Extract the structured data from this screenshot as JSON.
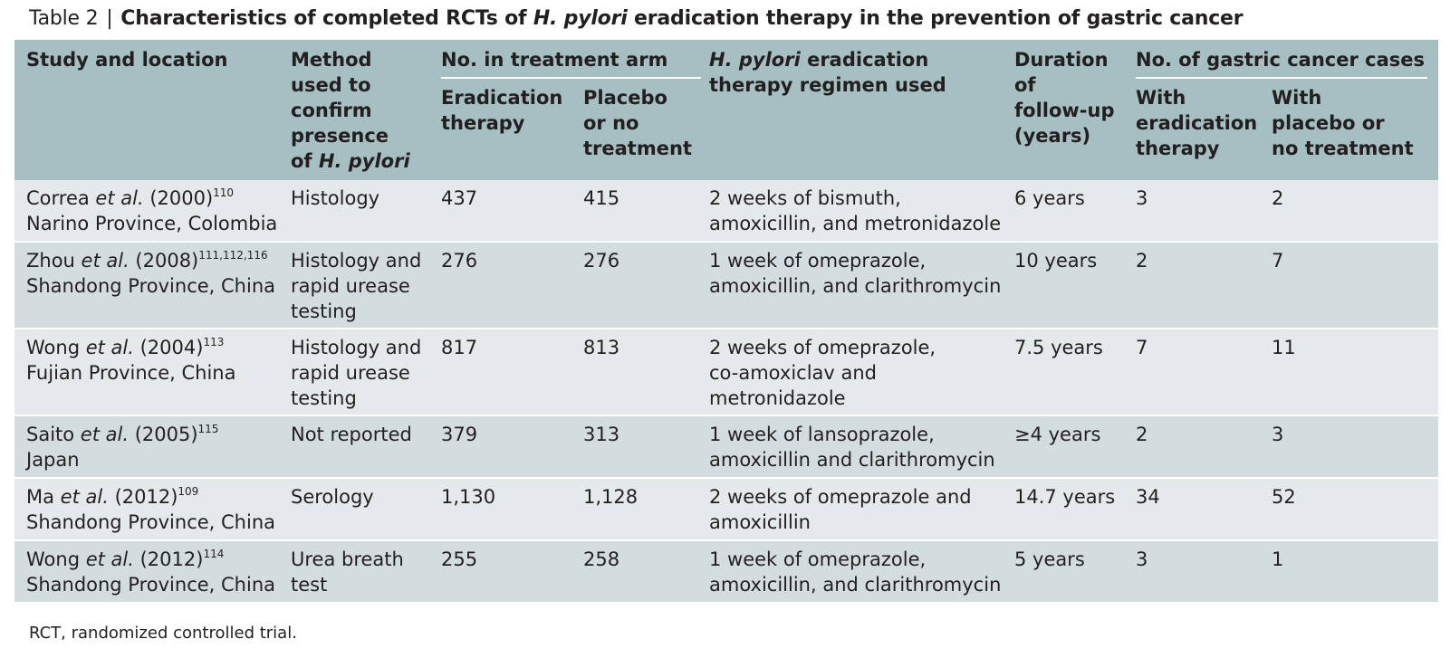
{
  "caption": {
    "label": "Table 2",
    "separator": "|",
    "title_before": "Characteristics of completed RCTs of ",
    "title_italic": "H. pylori",
    "title_after": " eradication therapy in the prevention of gastric cancer"
  },
  "headers": {
    "study": "Study and location",
    "method_a": "Method\nused to\nconfirm\npresence\nof ",
    "method_italic": "H. pylori",
    "treatment_group": "No. in treatment arm",
    "eradication": "Eradication\ntherapy",
    "placebo": "Placebo\nor no\ntreatment",
    "regimen_italic": "H. pylori",
    "regimen_rest": " eradication\ntherapy regimen used",
    "duration": "Duration\nof\nfollow-up\n(years)",
    "cases_group": "No. of gastric cancer cases",
    "with_eradication": "With\neradication\ntherapy",
    "with_placebo": "With\nplacebo or\nno treatment"
  },
  "rows": [
    {
      "author": "Correa ",
      "etal": "et al.",
      "year": " (2000)",
      "ref": "110",
      "location": "Narino Province, Colombia",
      "method": "Histology",
      "eradication": "437",
      "placebo": "415",
      "regimen": "2 weeks of bismuth,\namoxicillin, and metronidazole",
      "duration": "6 years",
      "cases_eradication": "3",
      "cases_placebo": "2"
    },
    {
      "author": "Zhou ",
      "etal": "et al.",
      "year": " (2008)",
      "ref": "111,112,116",
      "location": "Shandong Province, China",
      "method": "Histology and\nrapid urease\ntesting",
      "eradication": "276",
      "placebo": "276",
      "regimen": "1 week of omeprazole,\namoxicillin, and clarithromycin",
      "duration": "10 years",
      "cases_eradication": "2",
      "cases_placebo": "7"
    },
    {
      "author": "Wong ",
      "etal": "et al.",
      "year": " (2004)",
      "ref": "113",
      "location": "Fujian Province, China",
      "method": "Histology and\nrapid urease\ntesting",
      "eradication": "817",
      "placebo": "813",
      "regimen": "2 weeks of omeprazole,\nco-amoxiclav and\nmetronidazole",
      "duration": "7.5 years",
      "cases_eradication": "7",
      "cases_placebo": "11"
    },
    {
      "author": "Saito ",
      "etal": "et al.",
      "year": " (2005)",
      "ref": "115",
      "location": "Japan",
      "method": "Not reported",
      "eradication": "379",
      "placebo": "313",
      "regimen": "1 week of lansoprazole,\namoxicillin and clarithromycin",
      "duration": "≥4 years",
      "cases_eradication": "2",
      "cases_placebo": "3"
    },
    {
      "author": "Ma ",
      "etal": "et al.",
      "year": " (2012)",
      "ref": "109",
      "location": "Shandong Province, China",
      "method": "Serology",
      "eradication": "1,130",
      "placebo": "1,128",
      "regimen": "2 weeks of omeprazole and\namoxicillin",
      "duration": "14.7 years",
      "cases_eradication": "34",
      "cases_placebo": "52"
    },
    {
      "author": "Wong ",
      "etal": "et al.",
      "year": " (2012)",
      "ref": "114",
      "location": "Shandong Province, China",
      "method": "Urea breath\ntest",
      "eradication": "255",
      "placebo": "258",
      "regimen": "1 week of omeprazole,\namoxicillin, and clarithromycin",
      "duration": "5 years",
      "cases_eradication": "3",
      "cases_placebo": "1"
    }
  ],
  "footnote": "RCT, randomized controlled trial."
}
